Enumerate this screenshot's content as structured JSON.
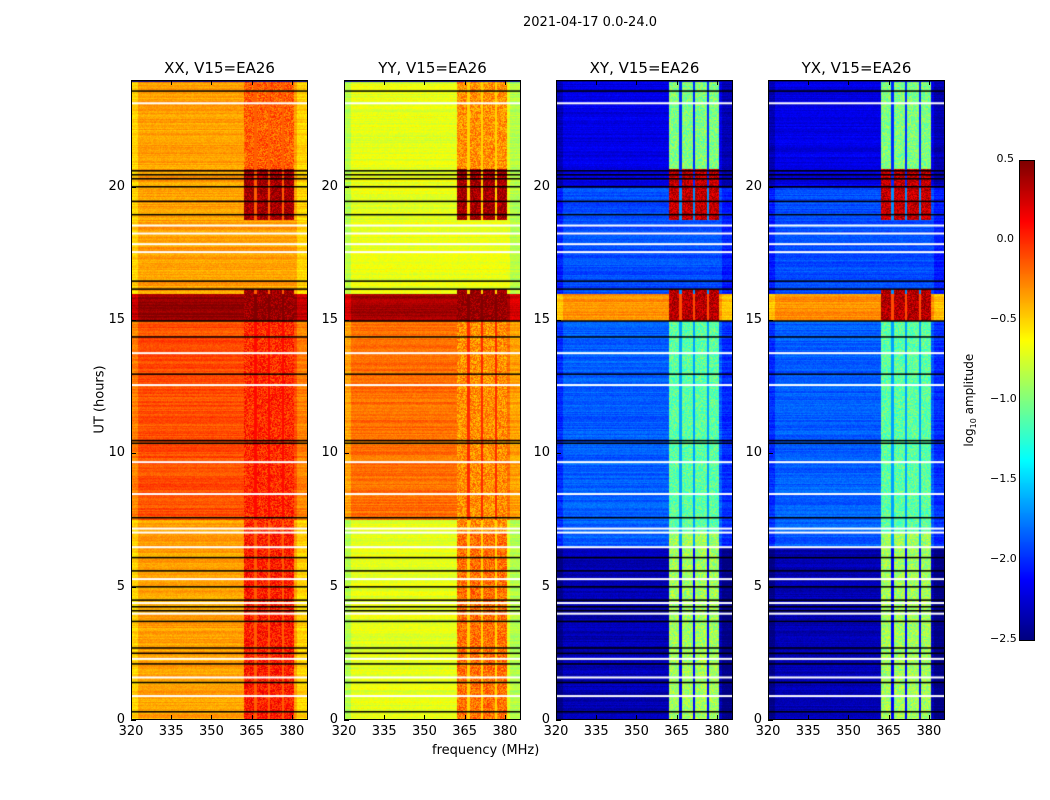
{
  "chart_data": {
    "type": "heatmap",
    "suptitle": "2021-04-17 0.0-24.0",
    "xlabel": "frequency (MHz)",
    "ylabel": "UT (hours)",
    "xlim": [
      320,
      386
    ],
    "ylim": [
      0,
      24
    ],
    "xticks": [
      "320",
      "335",
      "350",
      "365",
      "380"
    ],
    "yticks": [
      "0",
      "5",
      "10",
      "15",
      "20"
    ],
    "colorbar": {
      "label": "log10 amplitude",
      "label_main": "log",
      "label_sub": "10",
      "label_rest": " amplitude",
      "range": [
        -2.5,
        0.5
      ],
      "ticks": [
        "0.5",
        "0.0",
        "−0.5",
        "−1.0",
        "−1.5",
        "−2.0",
        "−2.5"
      ],
      "colormap": "jet"
    },
    "rfi_bands_mhz": [
      [
        362,
        366
      ],
      [
        367,
        371
      ],
      [
        372,
        376.5
      ],
      [
        377,
        381
      ]
    ],
    "flagged_black_hours": [
      0.3,
      1.4,
      2.1,
      2.5,
      2.7,
      3.7,
      4.1,
      4.25,
      4.5,
      5.0,
      5.6,
      6.1,
      7.6,
      10.4,
      10.5,
      13.0,
      14.4,
      15.0,
      16.2,
      16.5,
      19.0,
      19.5,
      20.05,
      20.35,
      20.5,
      20.65,
      23.65
    ],
    "flagged_white_hours": [
      0.9,
      1.6,
      2.3,
      4.0,
      4.4,
      5.3,
      6.5,
      7.05,
      7.2,
      8.5,
      9.7,
      12.6,
      13.8,
      17.6,
      17.9,
      18.3,
      18.6,
      23.2
    ],
    "panels": [
      {
        "title": "XX, V15=EA26",
        "segments": [
          {
            "t": [
              0,
              7.5
            ],
            "level": -0.35
          },
          {
            "t": [
              7.5,
              15
            ],
            "level": -0.1
          },
          {
            "t": [
              15,
              16
            ],
            "level": 0.45
          },
          {
            "t": [
              16,
              24
            ],
            "level": -0.35
          }
        ],
        "rfi": [
          {
            "t": [
              0,
              7
            ],
            "level": 0.05
          },
          {
            "t": [
              7,
              15
            ],
            "level": 0.0
          },
          {
            "t": [
              15,
              16.2
            ],
            "level": 0.45
          },
          {
            "t": [
              18.8,
              20.7
            ],
            "level": 0.4
          },
          {
            "t": [
              20.7,
              24
            ],
            "level": -0.15
          }
        ]
      },
      {
        "title": "YY, V15=EA26",
        "segments": [
          {
            "t": [
              0,
              7.5
            ],
            "level": -0.7
          },
          {
            "t": [
              7.5,
              15
            ],
            "level": -0.2
          },
          {
            "t": [
              15,
              16
            ],
            "level": 0.4
          },
          {
            "t": [
              16,
              24
            ],
            "level": -0.7
          }
        ],
        "rfi": [
          {
            "t": [
              0,
              7
            ],
            "level": -0.2
          },
          {
            "t": [
              7,
              15
            ],
            "level": -0.3
          },
          {
            "t": [
              15,
              16.2
            ],
            "level": 0.45
          },
          {
            "t": [
              18.8,
              20.7
            ],
            "level": 0.4
          },
          {
            "t": [
              20.7,
              24
            ],
            "level": -0.3
          }
        ]
      },
      {
        "title": "XY, V15=EA26",
        "segments": [
          {
            "t": [
              0,
              6.5
            ],
            "level": -2.35
          },
          {
            "t": [
              6.5,
              15
            ],
            "level": -1.85
          },
          {
            "t": [
              15,
              16
            ],
            "level": -0.3
          },
          {
            "t": [
              16,
              20
            ],
            "level": -1.9
          },
          {
            "t": [
              20,
              24
            ],
            "level": -2.2
          }
        ],
        "rfi": [
          {
            "t": [
              0,
              7
            ],
            "level": -0.9
          },
          {
            "t": [
              7,
              15
            ],
            "level": -1.1
          },
          {
            "t": [
              15,
              16.2
            ],
            "level": 0.35
          },
          {
            "t": [
              18.8,
              20.7
            ],
            "level": 0.3
          },
          {
            "t": [
              20.7,
              24
            ],
            "level": -1.0
          }
        ]
      },
      {
        "title": "YX, V15=EA26",
        "segments": [
          {
            "t": [
              0,
              6.5
            ],
            "level": -2.35
          },
          {
            "t": [
              6.5,
              15
            ],
            "level": -1.85
          },
          {
            "t": [
              15,
              16
            ],
            "level": -0.3
          },
          {
            "t": [
              16,
              20
            ],
            "level": -1.9
          },
          {
            "t": [
              20,
              24
            ],
            "level": -2.2
          }
        ],
        "rfi": [
          {
            "t": [
              0,
              7
            ],
            "level": -0.9
          },
          {
            "t": [
              7,
              15
            ],
            "level": -1.1
          },
          {
            "t": [
              15,
              16.2
            ],
            "level": 0.35
          },
          {
            "t": [
              18.8,
              20.7
            ],
            "level": 0.3
          },
          {
            "t": [
              20.7,
              24
            ],
            "level": -1.0
          }
        ]
      }
    ]
  }
}
